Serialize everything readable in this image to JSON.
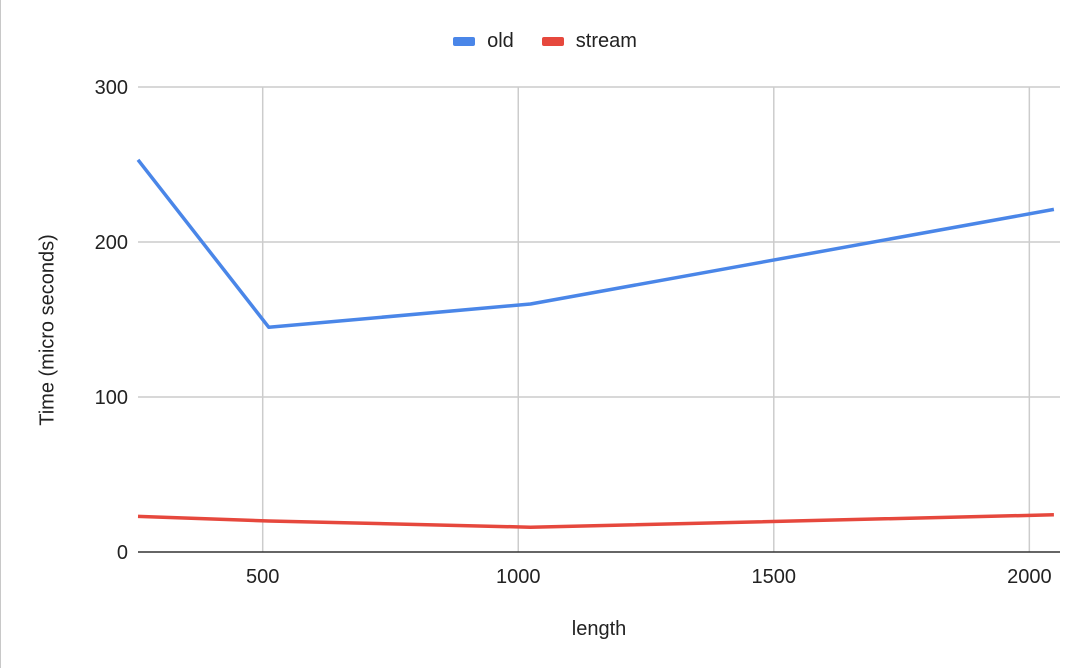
{
  "chart_data": {
    "type": "line",
    "title": "",
    "xlabel": "length",
    "ylabel": "Time (micro seconds)",
    "x": [
      256,
      512,
      1024,
      2048
    ],
    "x_ticks": [
      "500",
      "1000",
      "1500",
      "2000"
    ],
    "xlim": [
      256,
      2060
    ],
    "y_ticks": [
      "0",
      "100",
      "200",
      "300"
    ],
    "ylim": [
      0,
      300
    ],
    "grid": true,
    "legend_position": "top-center",
    "series": [
      {
        "name": "old",
        "color": "#4a86e8",
        "values": [
          253,
          145,
          160,
          221
        ]
      },
      {
        "name": "stream",
        "color": "#e6483d",
        "values": [
          23,
          20,
          16,
          24
        ]
      }
    ]
  }
}
